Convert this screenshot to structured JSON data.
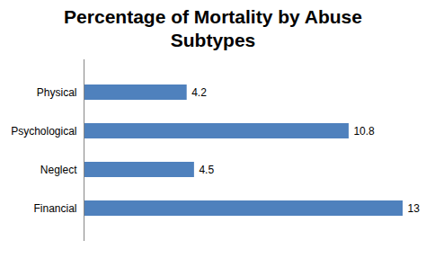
{
  "chart_data": {
    "type": "bar",
    "orientation": "horizontal",
    "title": "Percentage of Mortality by Abuse Subtypes",
    "categories": [
      "Physical",
      "Psychological",
      "Neglect",
      "Financial"
    ],
    "values": [
      4.2,
      10.8,
      4.5,
      13
    ],
    "color": "#4f81bd",
    "data_labels": true,
    "tick_labels": "y",
    "grid": false
  }
}
